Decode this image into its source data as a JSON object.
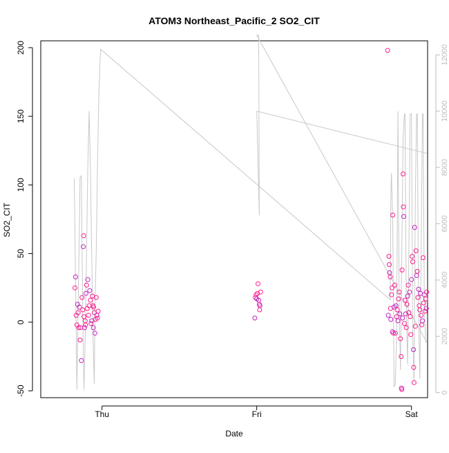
{
  "chart_data": {
    "type": "scatter",
    "title": "ATOM3 Northeast_Pacific_2 SO2_CIT",
    "xlabel": "Date",
    "ylabel": "SO2_CIT",
    "ylim": [
      -55,
      205
    ],
    "y_ticks": [
      -50,
      0,
      50,
      100,
      150,
      200
    ],
    "x_range_hours": [
      -9.5,
      50.5
    ],
    "x_ticks": [
      {
        "label": "Thu",
        "t": 0
      },
      {
        "label": "Fri",
        "t": 24
      },
      {
        "label": "Sat",
        "t": 48
      }
    ],
    "secondary_axis": {
      "label": "",
      "range": [
        -180,
        12500
      ],
      "ticks": [
        0,
        2000,
        4000,
        6000,
        8000,
        10000,
        12000
      ],
      "color": "#bdbdbd"
    },
    "colors": {
      "points": "#ff1a8c",
      "points_alt": "#c020c0",
      "line": "#c8c8c8"
    },
    "series": [
      {
        "type": "scatter",
        "points": [
          [
            -4.2,
            25
          ],
          [
            -4.1,
            33
          ],
          [
            -4.0,
            5
          ],
          [
            -3.9,
            -2
          ],
          [
            -3.8,
            13
          ],
          [
            -3.7,
            7
          ],
          [
            -3.6,
            -4
          ],
          [
            -3.5,
            11
          ],
          [
            -3.4,
            -13
          ],
          [
            -3.3,
            -4
          ],
          [
            -3.2,
            -28
          ],
          [
            -3.1,
            18
          ],
          [
            -3.0,
            9
          ],
          [
            -2.9,
            55
          ],
          [
            -2.85,
            63
          ],
          [
            -2.8,
            4
          ],
          [
            -2.7,
            -4
          ],
          [
            -2.6,
            1
          ],
          [
            -2.55,
            -2
          ],
          [
            -2.5,
            21
          ],
          [
            -2.4,
            27
          ],
          [
            -2.3,
            10
          ],
          [
            -2.2,
            31
          ],
          [
            -2.1,
            5
          ],
          [
            -2.0,
            12
          ],
          [
            -1.9,
            23
          ],
          [
            -1.8,
            16
          ],
          [
            -1.7,
            -1
          ],
          [
            -1.6,
            1
          ],
          [
            -1.5,
            19
          ],
          [
            -1.4,
            12
          ],
          [
            -1.35,
            -4
          ],
          [
            -1.3,
            11
          ],
          [
            -1.2,
            7
          ],
          [
            -1.1,
            -8
          ],
          [
            -1.0,
            2
          ],
          [
            -0.9,
            18
          ],
          [
            -0.8,
            5
          ],
          [
            -0.7,
            3
          ],
          [
            -0.6,
            8
          ],
          [
            23.7,
            3
          ],
          [
            23.8,
            18
          ],
          [
            23.9,
            20
          ],
          [
            24.0,
            17
          ],
          [
            24.1,
            21
          ],
          [
            24.2,
            28
          ],
          [
            24.3,
            16
          ],
          [
            24.4,
            13
          ],
          [
            24.45,
            9
          ],
          [
            24.5,
            12
          ],
          [
            24.6,
            22
          ],
          [
            44.3,
            198
          ],
          [
            44.4,
            5
          ],
          [
            44.5,
            48
          ],
          [
            44.55,
            42
          ],
          [
            44.6,
            36
          ],
          [
            44.7,
            33
          ],
          [
            44.75,
            10
          ],
          [
            44.8,
            2
          ],
          [
            44.9,
            20
          ],
          [
            45.0,
            25
          ],
          [
            45.05,
            -7
          ],
          [
            45.1,
            78
          ],
          [
            45.2,
            -8
          ],
          [
            45.3,
            11
          ],
          [
            45.4,
            27
          ],
          [
            45.5,
            -8
          ],
          [
            45.6,
            12
          ],
          [
            45.7,
            4
          ],
          [
            45.8,
            9
          ],
          [
            45.9,
            1
          ],
          [
            46.0,
            17
          ],
          [
            46.1,
            22
          ],
          [
            46.2,
            6
          ],
          [
            46.3,
            -12
          ],
          [
            46.4,
            -25
          ],
          [
            46.45,
            -48
          ],
          [
            46.5,
            -49
          ],
          [
            46.55,
            38
          ],
          [
            46.6,
            3
          ],
          [
            46.7,
            108
          ],
          [
            46.75,
            84
          ],
          [
            46.8,
            77
          ],
          [
            46.9,
            -1
          ],
          [
            47.0,
            16
          ],
          [
            47.1,
            6
          ],
          [
            47.2,
            -4
          ],
          [
            47.3,
            13
          ],
          [
            47.4,
            19
          ],
          [
            47.5,
            27
          ],
          [
            47.6,
            7
          ],
          [
            47.7,
            22
          ],
          [
            47.8,
            4
          ],
          [
            47.9,
            -9
          ],
          [
            48.0,
            31
          ],
          [
            48.1,
            48
          ],
          [
            48.2,
            44
          ],
          [
            48.3,
            -20
          ],
          [
            48.35,
            -33
          ],
          [
            48.4,
            -44
          ],
          [
            48.5,
            69
          ],
          [
            48.6,
            -3
          ],
          [
            48.7,
            52
          ],
          [
            48.8,
            34
          ],
          [
            48.9,
            37
          ],
          [
            49.0,
            18
          ],
          [
            49.1,
            24
          ],
          [
            49.2,
            12
          ],
          [
            49.3,
            9
          ],
          [
            49.4,
            21
          ],
          [
            49.5,
            5
          ],
          [
            49.6,
            -2
          ],
          [
            49.7,
            1
          ],
          [
            49.8,
            47
          ],
          [
            49.9,
            14
          ],
          [
            50.0,
            20
          ],
          [
            50.1,
            8
          ],
          [
            50.2,
            17
          ],
          [
            50.3,
            10
          ],
          [
            50.35,
            22
          ]
        ]
      },
      {
        "type": "line",
        "axis": "secondary",
        "points": [
          [
            -4.3,
            7600
          ],
          [
            -4.1,
            4000
          ],
          [
            -3.9,
            100
          ],
          [
            -3.7,
            3000
          ],
          [
            -3.5,
            6000
          ],
          [
            -3.4,
            7650
          ],
          [
            -3.2,
            7700
          ],
          [
            -3.0,
            3000
          ],
          [
            -2.8,
            100
          ],
          [
            -2.6,
            2000
          ],
          [
            -2.4,
            5000
          ],
          [
            -2.2,
            8000
          ],
          [
            -2.0,
            10000
          ],
          [
            -1.8,
            8000
          ],
          [
            -1.6,
            5000
          ],
          [
            -1.4,
            2000
          ],
          [
            -1.2,
            300
          ],
          [
            -1.1,
            3000
          ],
          [
            -0.9,
            5000
          ],
          [
            -0.7,
            8000
          ],
          [
            -0.5,
            10500
          ],
          [
            -0.3,
            11800
          ],
          [
            -0.2,
            12200
          ],
          [
            44.7,
            3300
          ],
          [
            44.7,
            3300
          ],
          [
            44.8,
            7000
          ],
          [
            44.9,
            7800
          ],
          [
            45.1,
            6000
          ],
          [
            45.3,
            200
          ],
          [
            45.5,
            300
          ],
          [
            45.7,
            2000
          ],
          [
            45.9,
            10000
          ],
          [
            46.1,
            3000
          ],
          [
            46.3,
            800
          ],
          [
            46.5,
            5000
          ],
          [
            46.7,
            9000
          ],
          [
            46.9,
            9900
          ],
          [
            47.0,
            9900
          ],
          [
            47.2,
            3000
          ],
          [
            47.4,
            1000
          ],
          [
            47.6,
            5000
          ],
          [
            47.8,
            9900
          ],
          [
            48.0,
            9900
          ],
          [
            48.2,
            2000
          ],
          [
            48.4,
            400
          ],
          [
            48.6,
            7000
          ],
          [
            48.8,
            9900
          ],
          [
            48.9,
            9900
          ],
          [
            49.1,
            3000
          ],
          [
            49.3,
            500
          ],
          [
            49.5,
            5000
          ],
          [
            49.7,
            9900
          ],
          [
            49.8,
            9900
          ],
          [
            50.0,
            3000
          ],
          [
            50.2,
            1800
          ],
          [
            50.35,
            1800
          ],
          [
            24.0,
            12700
          ],
          [
            24.1,
            12700
          ],
          [
            24.2,
            12700
          ],
          [
            24.3,
            12700
          ],
          [
            24.4,
            6300
          ],
          [
            24.0,
            10000
          ],
          [
            50.4,
            8500
          ]
        ]
      }
    ]
  }
}
